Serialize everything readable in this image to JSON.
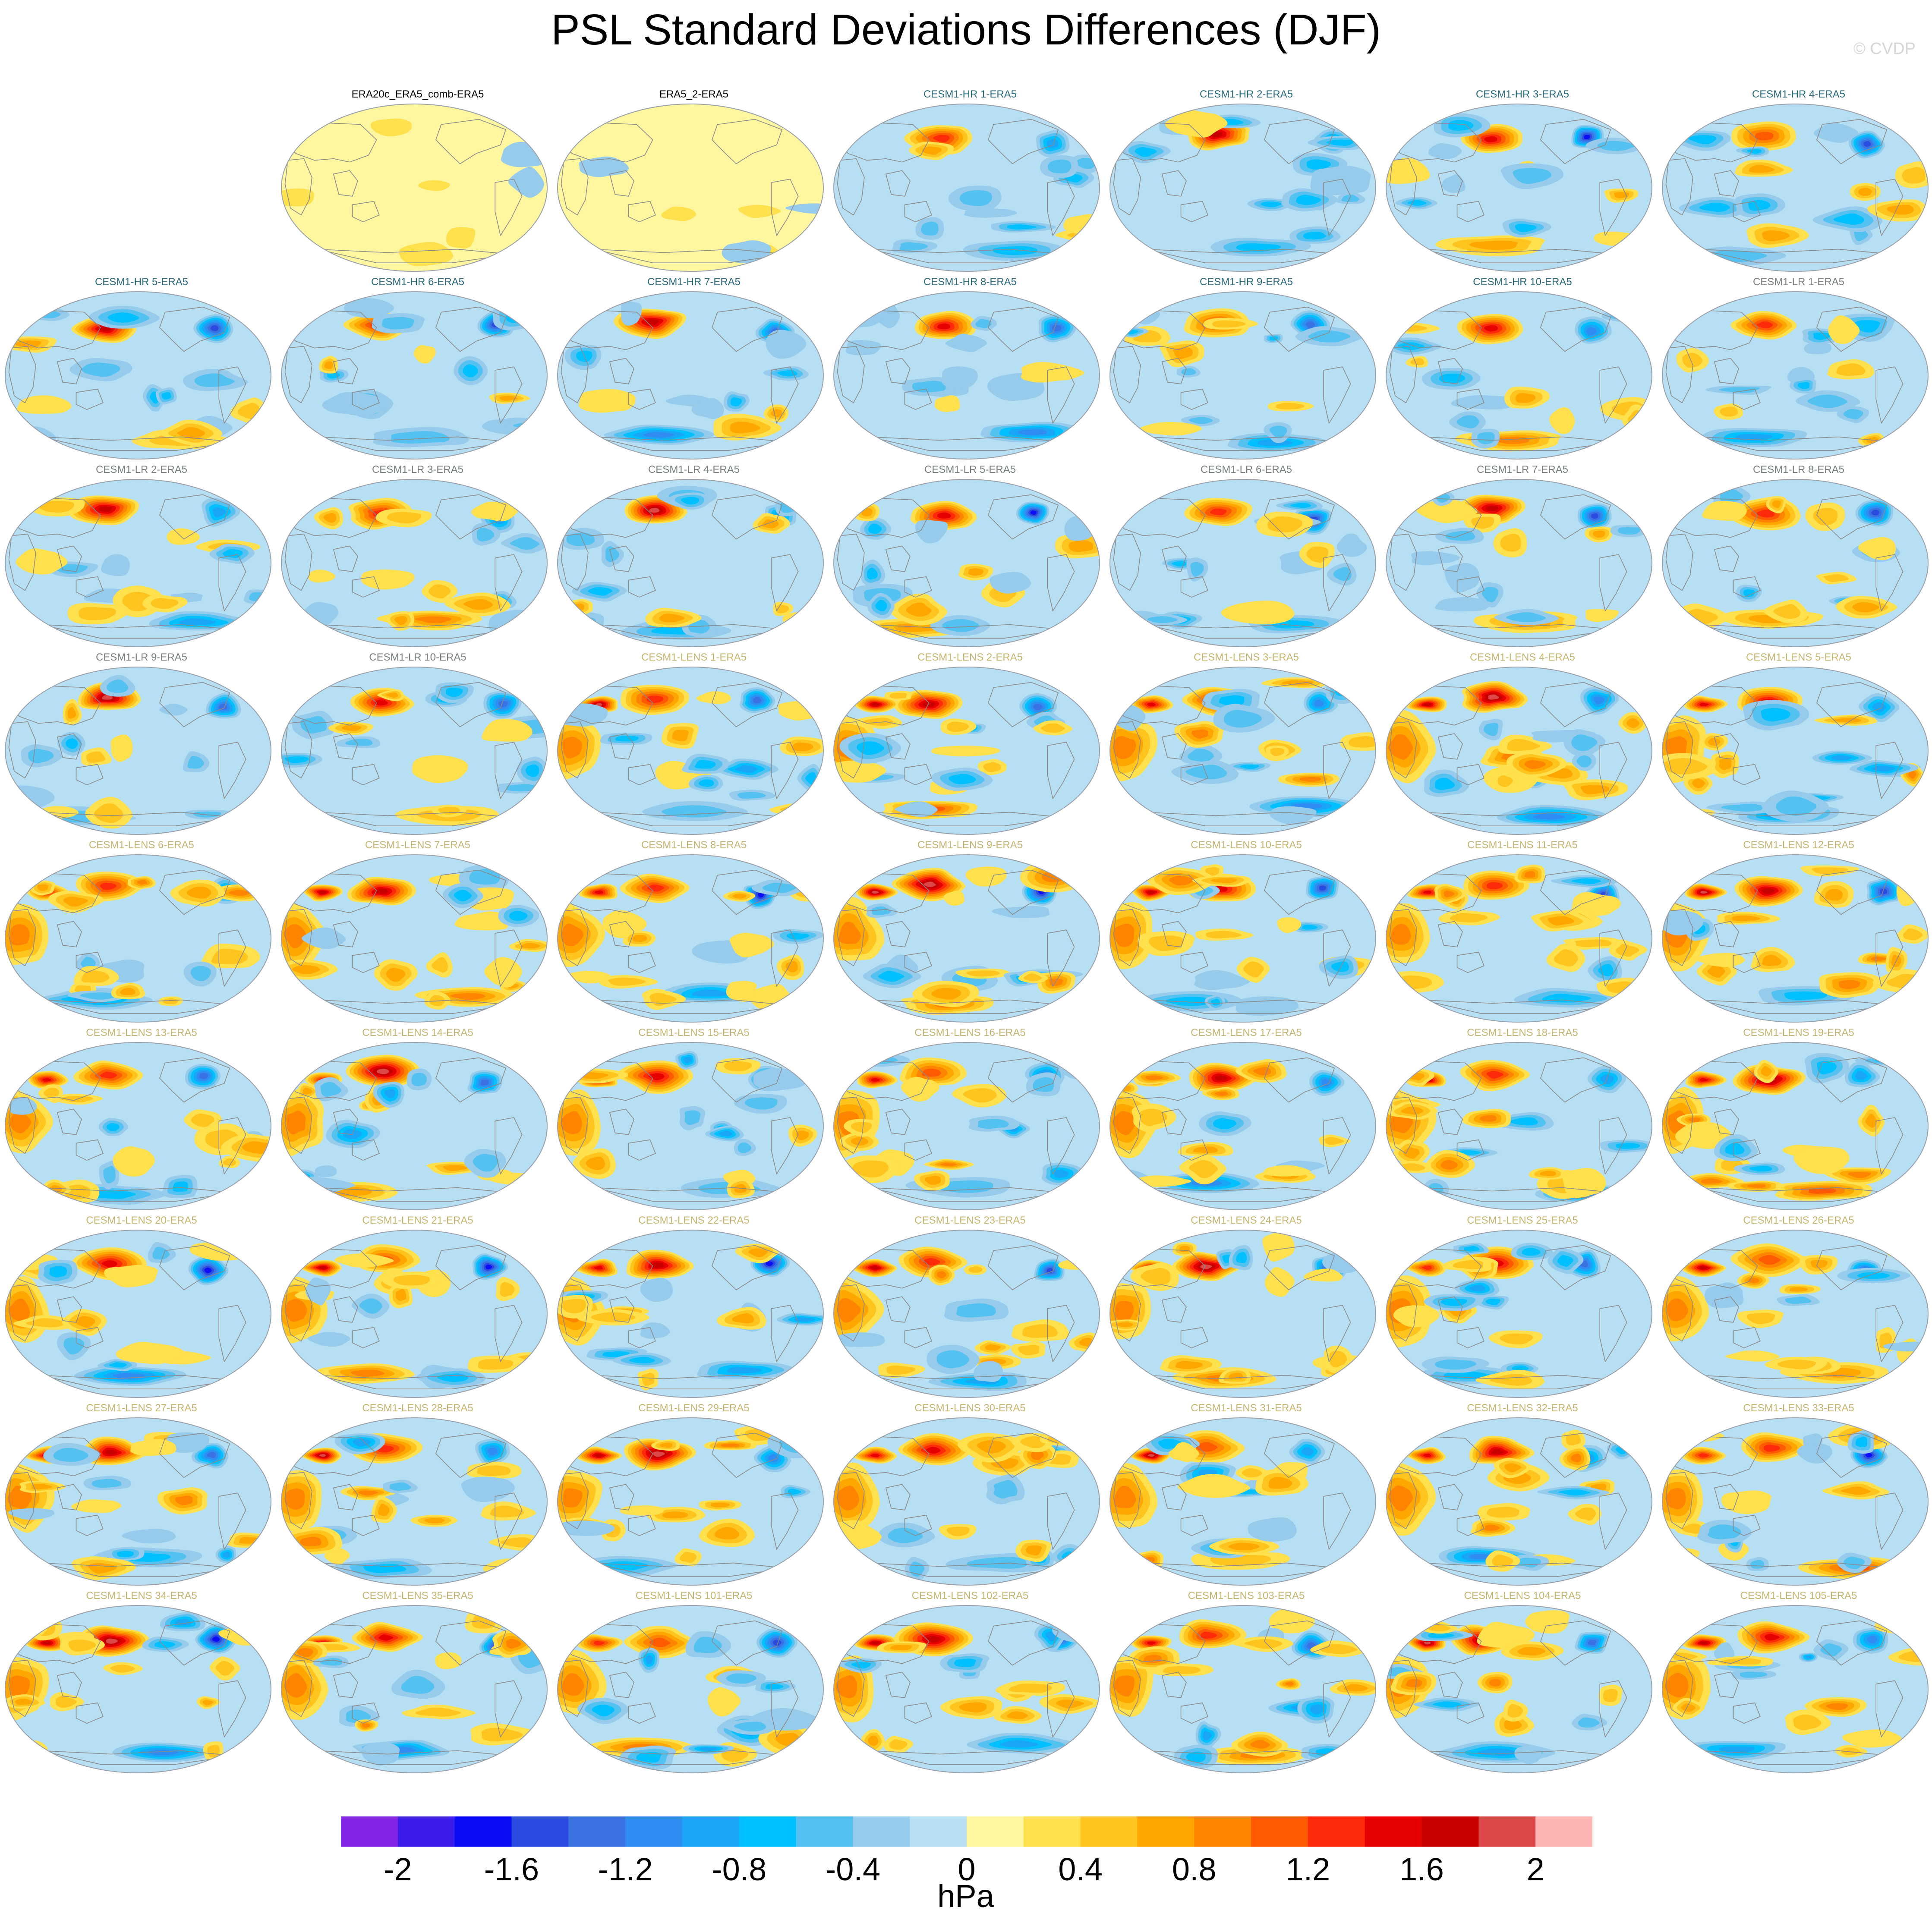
{
  "figure": {
    "title": "PSL Standard Deviations Differences (DJF)",
    "watermark": "© CVDP"
  },
  "colors": {
    "title_obs": "#000000",
    "title_hr": "#2a6a7a",
    "title_lr": "#7a8080",
    "title_lens": "#c4b670",
    "map_outline": "#9aa0aa",
    "coastline": "#8a8a8a"
  },
  "colorbar": {
    "units": "hPa",
    "tick_labels": [
      "-2",
      "-1.6",
      "-1.2",
      "-0.8",
      "-0.4",
      "0",
      "0.4",
      "0.8",
      "1.2",
      "1.6",
      "2"
    ],
    "bins": [
      "#8225e6",
      "#3b1ce8",
      "#0c0cf6",
      "#2b4ae0",
      "#3a72e2",
      "#2f8cf3",
      "#1aa6f6",
      "#00c0ff",
      "#54c2f0",
      "#96cbec",
      "#b7dff3",
      "#fff6a0",
      "#ffe04d",
      "#ffc41e",
      "#ffa600",
      "#ff8400",
      "#ff5a00",
      "#ff2a0a",
      "#e60000",
      "#c80000",
      "#dc4848",
      "#ffb4b4"
    ]
  },
  "panels": [
    {
      "title": "ERA20c_ERA5_comb-ERA5",
      "group": "obs"
    },
    {
      "title": "ERA5_2-ERA5",
      "group": "obs"
    },
    {
      "title": "CESM1-HR 1-ERA5",
      "group": "hr"
    },
    {
      "title": "CESM1-HR 2-ERA5",
      "group": "hr"
    },
    {
      "title": "CESM1-HR 3-ERA5",
      "group": "hr"
    },
    {
      "title": "CESM1-HR 4-ERA5",
      "group": "hr"
    },
    {
      "title": "CESM1-HR 5-ERA5",
      "group": "hr"
    },
    {
      "title": "CESM1-HR 6-ERA5",
      "group": "hr"
    },
    {
      "title": "CESM1-HR 7-ERA5",
      "group": "hr"
    },
    {
      "title": "CESM1-HR 8-ERA5",
      "group": "hr"
    },
    {
      "title": "CESM1-HR 9-ERA5",
      "group": "hr"
    },
    {
      "title": "CESM1-HR 10-ERA5",
      "group": "hr"
    },
    {
      "title": "CESM1-LR 1-ERA5",
      "group": "lr"
    },
    {
      "title": "CESM1-LR 2-ERA5",
      "group": "lr"
    },
    {
      "title": "CESM1-LR 3-ERA5",
      "group": "lr"
    },
    {
      "title": "CESM1-LR 4-ERA5",
      "group": "lr"
    },
    {
      "title": "CESM1-LR 5-ERA5",
      "group": "lr"
    },
    {
      "title": "CESM1-LR 6-ERA5",
      "group": "lr"
    },
    {
      "title": "CESM1-LR 7-ERA5",
      "group": "lr"
    },
    {
      "title": "CESM1-LR 8-ERA5",
      "group": "lr"
    },
    {
      "title": "CESM1-LR 9-ERA5",
      "group": "lr"
    },
    {
      "title": "CESM1-LR 10-ERA5",
      "group": "lr"
    },
    {
      "title": "CESM1-LENS 1-ERA5",
      "group": "lens"
    },
    {
      "title": "CESM1-LENS 2-ERA5",
      "group": "lens"
    },
    {
      "title": "CESM1-LENS 3-ERA5",
      "group": "lens"
    },
    {
      "title": "CESM1-LENS 4-ERA5",
      "group": "lens"
    },
    {
      "title": "CESM1-LENS 5-ERA5",
      "group": "lens"
    },
    {
      "title": "CESM1-LENS 6-ERA5",
      "group": "lens"
    },
    {
      "title": "CESM1-LENS 7-ERA5",
      "group": "lens"
    },
    {
      "title": "CESM1-LENS 8-ERA5",
      "group": "lens"
    },
    {
      "title": "CESM1-LENS 9-ERA5",
      "group": "lens"
    },
    {
      "title": "CESM1-LENS 10-ERA5",
      "group": "lens"
    },
    {
      "title": "CESM1-LENS 11-ERA5",
      "group": "lens"
    },
    {
      "title": "CESM1-LENS 12-ERA5",
      "group": "lens"
    },
    {
      "title": "CESM1-LENS 13-ERA5",
      "group": "lens"
    },
    {
      "title": "CESM1-LENS 14-ERA5",
      "group": "lens"
    },
    {
      "title": "CESM1-LENS 15-ERA5",
      "group": "lens"
    },
    {
      "title": "CESM1-LENS 16-ERA5",
      "group": "lens"
    },
    {
      "title": "CESM1-LENS 17-ERA5",
      "group": "lens"
    },
    {
      "title": "CESM1-LENS 18-ERA5",
      "group": "lens"
    },
    {
      "title": "CESM1-LENS 19-ERA5",
      "group": "lens"
    },
    {
      "title": "CESM1-LENS 20-ERA5",
      "group": "lens"
    },
    {
      "title": "CESM1-LENS 21-ERA5",
      "group": "lens"
    },
    {
      "title": "CESM1-LENS 22-ERA5",
      "group": "lens"
    },
    {
      "title": "CESM1-LENS 23-ERA5",
      "group": "lens"
    },
    {
      "title": "CESM1-LENS 24-ERA5",
      "group": "lens"
    },
    {
      "title": "CESM1-LENS 25-ERA5",
      "group": "lens"
    },
    {
      "title": "CESM1-LENS 26-ERA5",
      "group": "lens"
    },
    {
      "title": "CESM1-LENS 27-ERA5",
      "group": "lens"
    },
    {
      "title": "CESM1-LENS 28-ERA5",
      "group": "lens"
    },
    {
      "title": "CESM1-LENS 29-ERA5",
      "group": "lens"
    },
    {
      "title": "CESM1-LENS 30-ERA5",
      "group": "lens"
    },
    {
      "title": "CESM1-LENS 31-ERA5",
      "group": "lens"
    },
    {
      "title": "CESM1-LENS 32-ERA5",
      "group": "lens"
    },
    {
      "title": "CESM1-LENS 33-ERA5",
      "group": "lens"
    },
    {
      "title": "CESM1-LENS 34-ERA5",
      "group": "lens"
    },
    {
      "title": "CESM1-LENS 35-ERA5",
      "group": "lens"
    },
    {
      "title": "CESM1-LENS 101-ERA5",
      "group": "lens"
    },
    {
      "title": "CESM1-LENS 102-ERA5",
      "group": "lens"
    },
    {
      "title": "CESM1-LENS 103-ERA5",
      "group": "lens"
    },
    {
      "title": "CESM1-LENS 104-ERA5",
      "group": "lens"
    },
    {
      "title": "CESM1-LENS 105-ERA5",
      "group": "lens"
    }
  ]
}
